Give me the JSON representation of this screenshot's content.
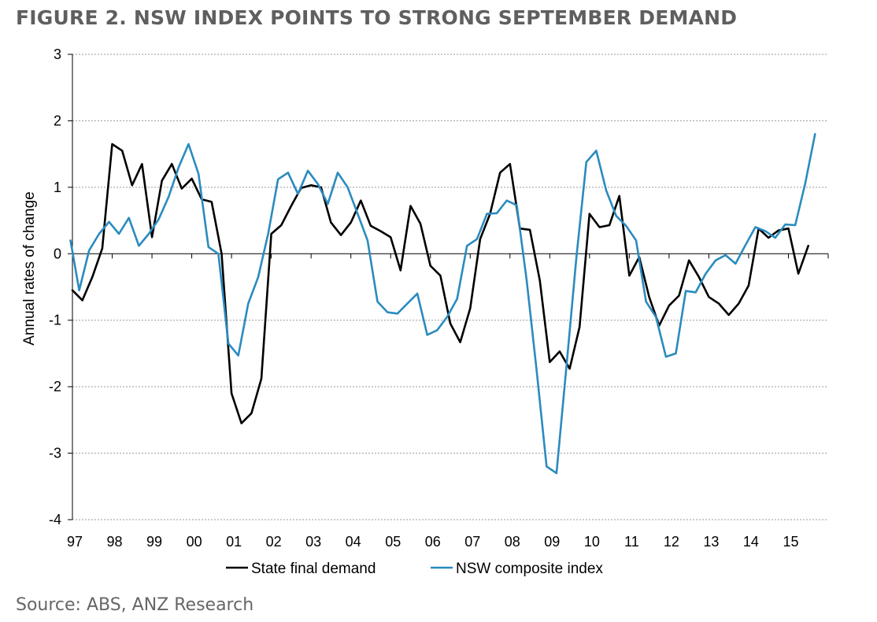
{
  "figure": {
    "title": "FIGURE 2. NSW INDEX POINTS TO STRONG SEPTEMBER DEMAND",
    "source": "Source: ABS, ANZ Research"
  },
  "chart_data": {
    "type": "line",
    "ylabel": "Annual rates of change",
    "xlabel": "",
    "ylim": [
      -4,
      3
    ],
    "yticks": [
      3,
      2,
      1,
      0,
      -1,
      -2,
      -3,
      -4
    ],
    "xlim": [
      1997,
      2016
    ],
    "xticks": [
      {
        "value": 1997,
        "label": "97"
      },
      {
        "value": 1998,
        "label": "98"
      },
      {
        "value": 1999,
        "label": "99"
      },
      {
        "value": 2000,
        "label": "00"
      },
      {
        "value": 2001,
        "label": "01"
      },
      {
        "value": 2002,
        "label": "02"
      },
      {
        "value": 2003,
        "label": "03"
      },
      {
        "value": 2004,
        "label": "04"
      },
      {
        "value": 2005,
        "label": "05"
      },
      {
        "value": 2006,
        "label": "06"
      },
      {
        "value": 2007,
        "label": "07"
      },
      {
        "value": 2008,
        "label": "08"
      },
      {
        "value": 2009,
        "label": "09"
      },
      {
        "value": 2010,
        "label": "10"
      },
      {
        "value": 2011,
        "label": "11"
      },
      {
        "value": 2012,
        "label": "12"
      },
      {
        "value": 2013,
        "label": "13"
      },
      {
        "value": 2014,
        "label": "14"
      },
      {
        "value": 2015,
        "label": "15"
      }
    ],
    "grid": true,
    "legend_position": "bottom",
    "series": [
      {
        "name": "State final demand",
        "color": "#000000",
        "points": [
          [
            1997.0,
            -0.55
          ],
          [
            1997.25,
            -0.7
          ],
          [
            1997.5,
            -0.35
          ],
          [
            1997.75,
            0.08
          ],
          [
            1998.0,
            1.65
          ],
          [
            1998.25,
            1.55
          ],
          [
            1998.5,
            1.03
          ],
          [
            1998.75,
            1.35
          ],
          [
            1999.0,
            0.25
          ],
          [
            1999.25,
            1.1
          ],
          [
            1999.5,
            1.35
          ],
          [
            1999.75,
            0.98
          ],
          [
            2000.0,
            1.13
          ],
          [
            2000.25,
            0.82
          ],
          [
            2000.5,
            0.78
          ],
          [
            2000.75,
            0.0
          ],
          [
            2001.0,
            -2.1
          ],
          [
            2001.25,
            -2.55
          ],
          [
            2001.5,
            -2.4
          ],
          [
            2001.75,
            -1.88
          ],
          [
            2002.0,
            0.3
          ],
          [
            2002.25,
            0.43
          ],
          [
            2002.5,
            0.72
          ],
          [
            2002.75,
            0.99
          ],
          [
            2003.0,
            1.03
          ],
          [
            2003.25,
            1.0
          ],
          [
            2003.5,
            0.47
          ],
          [
            2003.75,
            0.28
          ],
          [
            2004.0,
            0.47
          ],
          [
            2004.25,
            0.8
          ],
          [
            2004.5,
            0.42
          ],
          [
            2004.75,
            0.34
          ],
          [
            2005.0,
            0.25
          ],
          [
            2005.25,
            -0.25
          ],
          [
            2005.5,
            0.72
          ],
          [
            2005.75,
            0.45
          ],
          [
            2006.0,
            -0.18
          ],
          [
            2006.25,
            -0.33
          ],
          [
            2006.5,
            -1.05
          ],
          [
            2006.75,
            -1.33
          ],
          [
            2007.0,
            -0.82
          ],
          [
            2007.25,
            0.22
          ],
          [
            2007.5,
            0.6
          ],
          [
            2007.75,
            1.22
          ],
          [
            2008.0,
            1.35
          ],
          [
            2008.25,
            0.38
          ],
          [
            2008.5,
            0.36
          ],
          [
            2008.75,
            -0.4
          ],
          [
            2009.0,
            -1.63
          ],
          [
            2009.25,
            -1.47
          ],
          [
            2009.5,
            -1.73
          ],
          [
            2009.75,
            -1.1
          ],
          [
            2010.0,
            0.6
          ],
          [
            2010.25,
            0.4
          ],
          [
            2010.5,
            0.43
          ],
          [
            2010.75,
            0.87
          ],
          [
            2011.0,
            -0.33
          ],
          [
            2011.25,
            -0.05
          ],
          [
            2011.5,
            -0.65
          ],
          [
            2011.75,
            -1.08
          ],
          [
            2012.0,
            -0.78
          ],
          [
            2012.25,
            -0.63
          ],
          [
            2012.5,
            -0.1
          ],
          [
            2012.75,
            -0.35
          ],
          [
            2013.0,
            -0.65
          ],
          [
            2013.25,
            -0.75
          ],
          [
            2013.5,
            -0.92
          ],
          [
            2013.75,
            -0.75
          ],
          [
            2014.0,
            -0.48
          ],
          [
            2014.25,
            0.38
          ],
          [
            2014.5,
            0.24
          ],
          [
            2014.75,
            0.35
          ],
          [
            2015.0,
            0.38
          ],
          [
            2015.25,
            -0.3
          ],
          [
            2015.5,
            0.12
          ]
        ]
      },
      {
        "name": "NSW composite index",
        "color": "#2a8bbf",
        "points": [
          [
            1996.95,
            0.2
          ],
          [
            1997.17,
            -0.55
          ],
          [
            1997.42,
            0.05
          ],
          [
            1997.67,
            0.3
          ],
          [
            1997.92,
            0.48
          ],
          [
            1998.17,
            0.3
          ],
          [
            1998.42,
            0.54
          ],
          [
            1998.67,
            0.12
          ],
          [
            1998.92,
            0.3
          ],
          [
            1999.17,
            0.52
          ],
          [
            1999.42,
            0.86
          ],
          [
            1999.67,
            1.3
          ],
          [
            1999.92,
            1.65
          ],
          [
            2000.17,
            1.2
          ],
          [
            2000.42,
            0.1
          ],
          [
            2000.67,
            0.0
          ],
          [
            2000.92,
            -1.35
          ],
          [
            2001.17,
            -1.53
          ],
          [
            2001.42,
            -0.75
          ],
          [
            2001.67,
            -0.35
          ],
          [
            2001.92,
            0.3
          ],
          [
            2002.17,
            1.12
          ],
          [
            2002.42,
            1.22
          ],
          [
            2002.67,
            0.9
          ],
          [
            2002.92,
            1.25
          ],
          [
            2003.17,
            1.05
          ],
          [
            2003.42,
            0.75
          ],
          [
            2003.67,
            1.22
          ],
          [
            2003.92,
            1.0
          ],
          [
            2004.17,
            0.6
          ],
          [
            2004.42,
            0.2
          ],
          [
            2004.67,
            -0.72
          ],
          [
            2004.92,
            -0.88
          ],
          [
            2005.17,
            -0.9
          ],
          [
            2005.42,
            -0.75
          ],
          [
            2005.67,
            -0.6
          ],
          [
            2005.92,
            -1.22
          ],
          [
            2006.17,
            -1.15
          ],
          [
            2006.42,
            -0.95
          ],
          [
            2006.67,
            -0.68
          ],
          [
            2006.92,
            0.12
          ],
          [
            2007.17,
            0.22
          ],
          [
            2007.42,
            0.6
          ],
          [
            2007.67,
            0.61
          ],
          [
            2007.92,
            0.8
          ],
          [
            2008.17,
            0.73
          ],
          [
            2008.42,
            -0.4
          ],
          [
            2008.67,
            -1.75
          ],
          [
            2008.92,
            -3.2
          ],
          [
            2009.17,
            -3.3
          ],
          [
            2009.42,
            -1.7
          ],
          [
            2009.67,
            -0.05
          ],
          [
            2009.92,
            1.38
          ],
          [
            2010.17,
            1.55
          ],
          [
            2010.42,
            0.95
          ],
          [
            2010.67,
            0.57
          ],
          [
            2010.92,
            0.42
          ],
          [
            2011.17,
            0.2
          ],
          [
            2011.42,
            -0.72
          ],
          [
            2011.67,
            -0.95
          ],
          [
            2011.92,
            -1.55
          ],
          [
            2012.17,
            -1.5
          ],
          [
            2012.42,
            -0.56
          ],
          [
            2012.67,
            -0.58
          ],
          [
            2012.92,
            -0.3
          ],
          [
            2013.17,
            -0.1
          ],
          [
            2013.42,
            -0.02
          ],
          [
            2013.67,
            -0.15
          ],
          [
            2013.92,
            0.13
          ],
          [
            2014.17,
            0.4
          ],
          [
            2014.42,
            0.34
          ],
          [
            2014.67,
            0.24
          ],
          [
            2014.92,
            0.44
          ],
          [
            2015.17,
            0.43
          ],
          [
            2015.42,
            1.05
          ],
          [
            2015.67,
            1.8
          ]
        ]
      }
    ]
  }
}
